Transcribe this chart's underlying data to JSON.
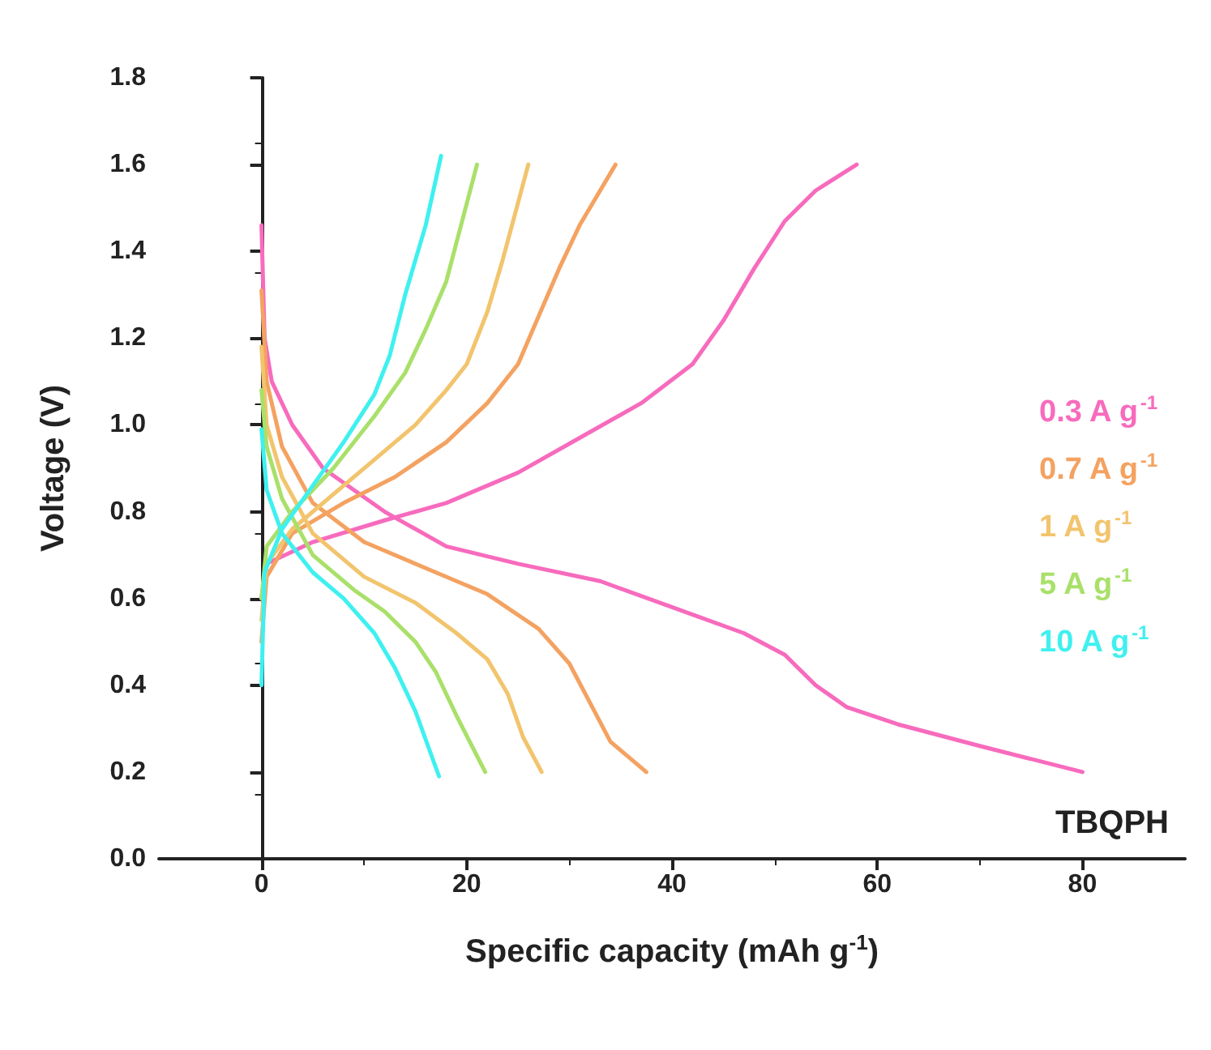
{
  "chart_data": {
    "type": "line",
    "xlabel": "Specific capacity (mAh g$^{-1}$)",
    "ylabel": "Voltage (V)",
    "xlim": [
      -10,
      90
    ],
    "xticks": [
      0,
      20,
      40,
      60,
      80
    ],
    "ylim": [
      0,
      1.8
    ],
    "yticks": [
      {
        "value": 0,
        "label": "0.0"
      },
      0.2,
      0.4,
      0.6,
      0.8,
      {
        "value": 1,
        "label": "1.0"
      },
      1.2,
      1.4,
      1.6,
      1.8
    ],
    "legend": "right",
    "marker": "none",
    "line_style": "solid",
    "annotations": [
      "TBQPH"
    ],
    "series": [
      {
        "name": "0.3 A g$^{-1}$",
        "color": "#f76bbd",
        "x": [
          0,
          0.3,
          1,
          3,
          6,
          12,
          18,
          25,
          33,
          40,
          47,
          51,
          54,
          57,
          62,
          70,
          80,
          null,
          0,
          0.5,
          5,
          12,
          18,
          25,
          31,
          37,
          42,
          45,
          48,
          51,
          54,
          58
        ],
        "values": [
          1.46,
          1.2,
          1.1,
          1.0,
          0.9,
          0.8,
          0.72,
          0.68,
          0.64,
          0.58,
          0.52,
          0.47,
          0.4,
          0.35,
          0.31,
          0.26,
          0.2,
          null,
          0.6,
          0.68,
          0.73,
          0.78,
          0.82,
          0.89,
          0.97,
          1.05,
          1.14,
          1.24,
          1.36,
          1.47,
          1.54,
          1.6
        ]
      },
      {
        "name": "0.7 A g$^{-1}$",
        "color": "#f4a261",
        "x": [
          0,
          0.5,
          2,
          5,
          10,
          16,
          22,
          27,
          30,
          32,
          34,
          37.5,
          null,
          0,
          0.5,
          3,
          8,
          13,
          18,
          22,
          25,
          27,
          29,
          31,
          34.5
        ],
        "values": [
          1.31,
          1.1,
          0.95,
          0.82,
          0.73,
          0.67,
          0.61,
          0.53,
          0.45,
          0.36,
          0.27,
          0.2,
          null,
          0.5,
          0.65,
          0.75,
          0.82,
          0.88,
          0.96,
          1.05,
          1.14,
          1.25,
          1.36,
          1.46,
          1.6
        ]
      },
      {
        "name": "1 A g$^{-1}$",
        "color": "#f2c46d",
        "x": [
          0,
          0.5,
          2,
          5,
          10,
          15,
          19,
          22,
          24,
          25.5,
          27.3,
          null,
          0,
          0.5,
          3,
          7,
          11,
          15,
          18,
          20,
          22,
          23.5,
          26
        ],
        "values": [
          1.18,
          1.0,
          0.88,
          0.75,
          0.65,
          0.59,
          0.52,
          0.46,
          0.38,
          0.28,
          0.2,
          null,
          0.55,
          0.68,
          0.76,
          0.84,
          0.92,
          1.0,
          1.08,
          1.14,
          1.26,
          1.38,
          1.6
        ]
      },
      {
        "name": "5 A g$^{-1}$",
        "color": "#a9e06a",
        "x": [
          0,
          0.5,
          2,
          5,
          9,
          12,
          15,
          17,
          19,
          21.8,
          null,
          0,
          0.5,
          3,
          7,
          11,
          14,
          16,
          18,
          21
        ],
        "values": [
          1.08,
          0.95,
          0.83,
          0.7,
          0.62,
          0.57,
          0.5,
          0.43,
          0.33,
          0.2,
          null,
          0.6,
          0.72,
          0.8,
          0.9,
          1.02,
          1.12,
          1.22,
          1.33,
          1.6
        ]
      },
      {
        "name": "10 A g$^{-1}$",
        "color": "#3ff0f0",
        "x": [
          0,
          0.5,
          2,
          5,
          8,
          11,
          13,
          15,
          17.3,
          null,
          0,
          0.3,
          2,
          5,
          8,
          11,
          12.5,
          14,
          16,
          17.5
        ],
        "values": [
          0.99,
          0.85,
          0.75,
          0.66,
          0.6,
          0.52,
          0.44,
          0.34,
          0.19,
          null,
          0.4,
          0.66,
          0.76,
          0.86,
          0.96,
          1.07,
          1.16,
          1.3,
          1.46,
          1.62
        ]
      }
    ]
  }
}
